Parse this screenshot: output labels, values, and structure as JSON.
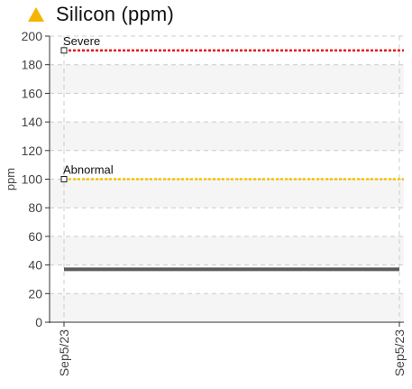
{
  "title": "Silicon (ppm)",
  "icons": {
    "title_icon": "warning-triangle-icon"
  },
  "colors": {
    "warning": "#f5b400",
    "severe": "#e8111b",
    "abnormal": "#f5c400",
    "series": "#5b5b5b",
    "grid": "#cccccc",
    "band": "#f5f5f5"
  },
  "chart_data": {
    "type": "line",
    "title": "Silicon (ppm)",
    "xlabel": "",
    "ylabel": "ppm",
    "ylim": [
      0,
      200
    ],
    "yticks": [
      0,
      20,
      40,
      60,
      80,
      100,
      120,
      140,
      160,
      180,
      200
    ],
    "x": [
      "Sep5/23",
      "Sep5/23"
    ],
    "series": [
      {
        "values": [
          37,
          37
        ]
      }
    ],
    "limits": [
      {
        "name": "Severe",
        "value": 190
      },
      {
        "name": "Abnormal",
        "value": 100
      }
    ],
    "grid": true
  }
}
